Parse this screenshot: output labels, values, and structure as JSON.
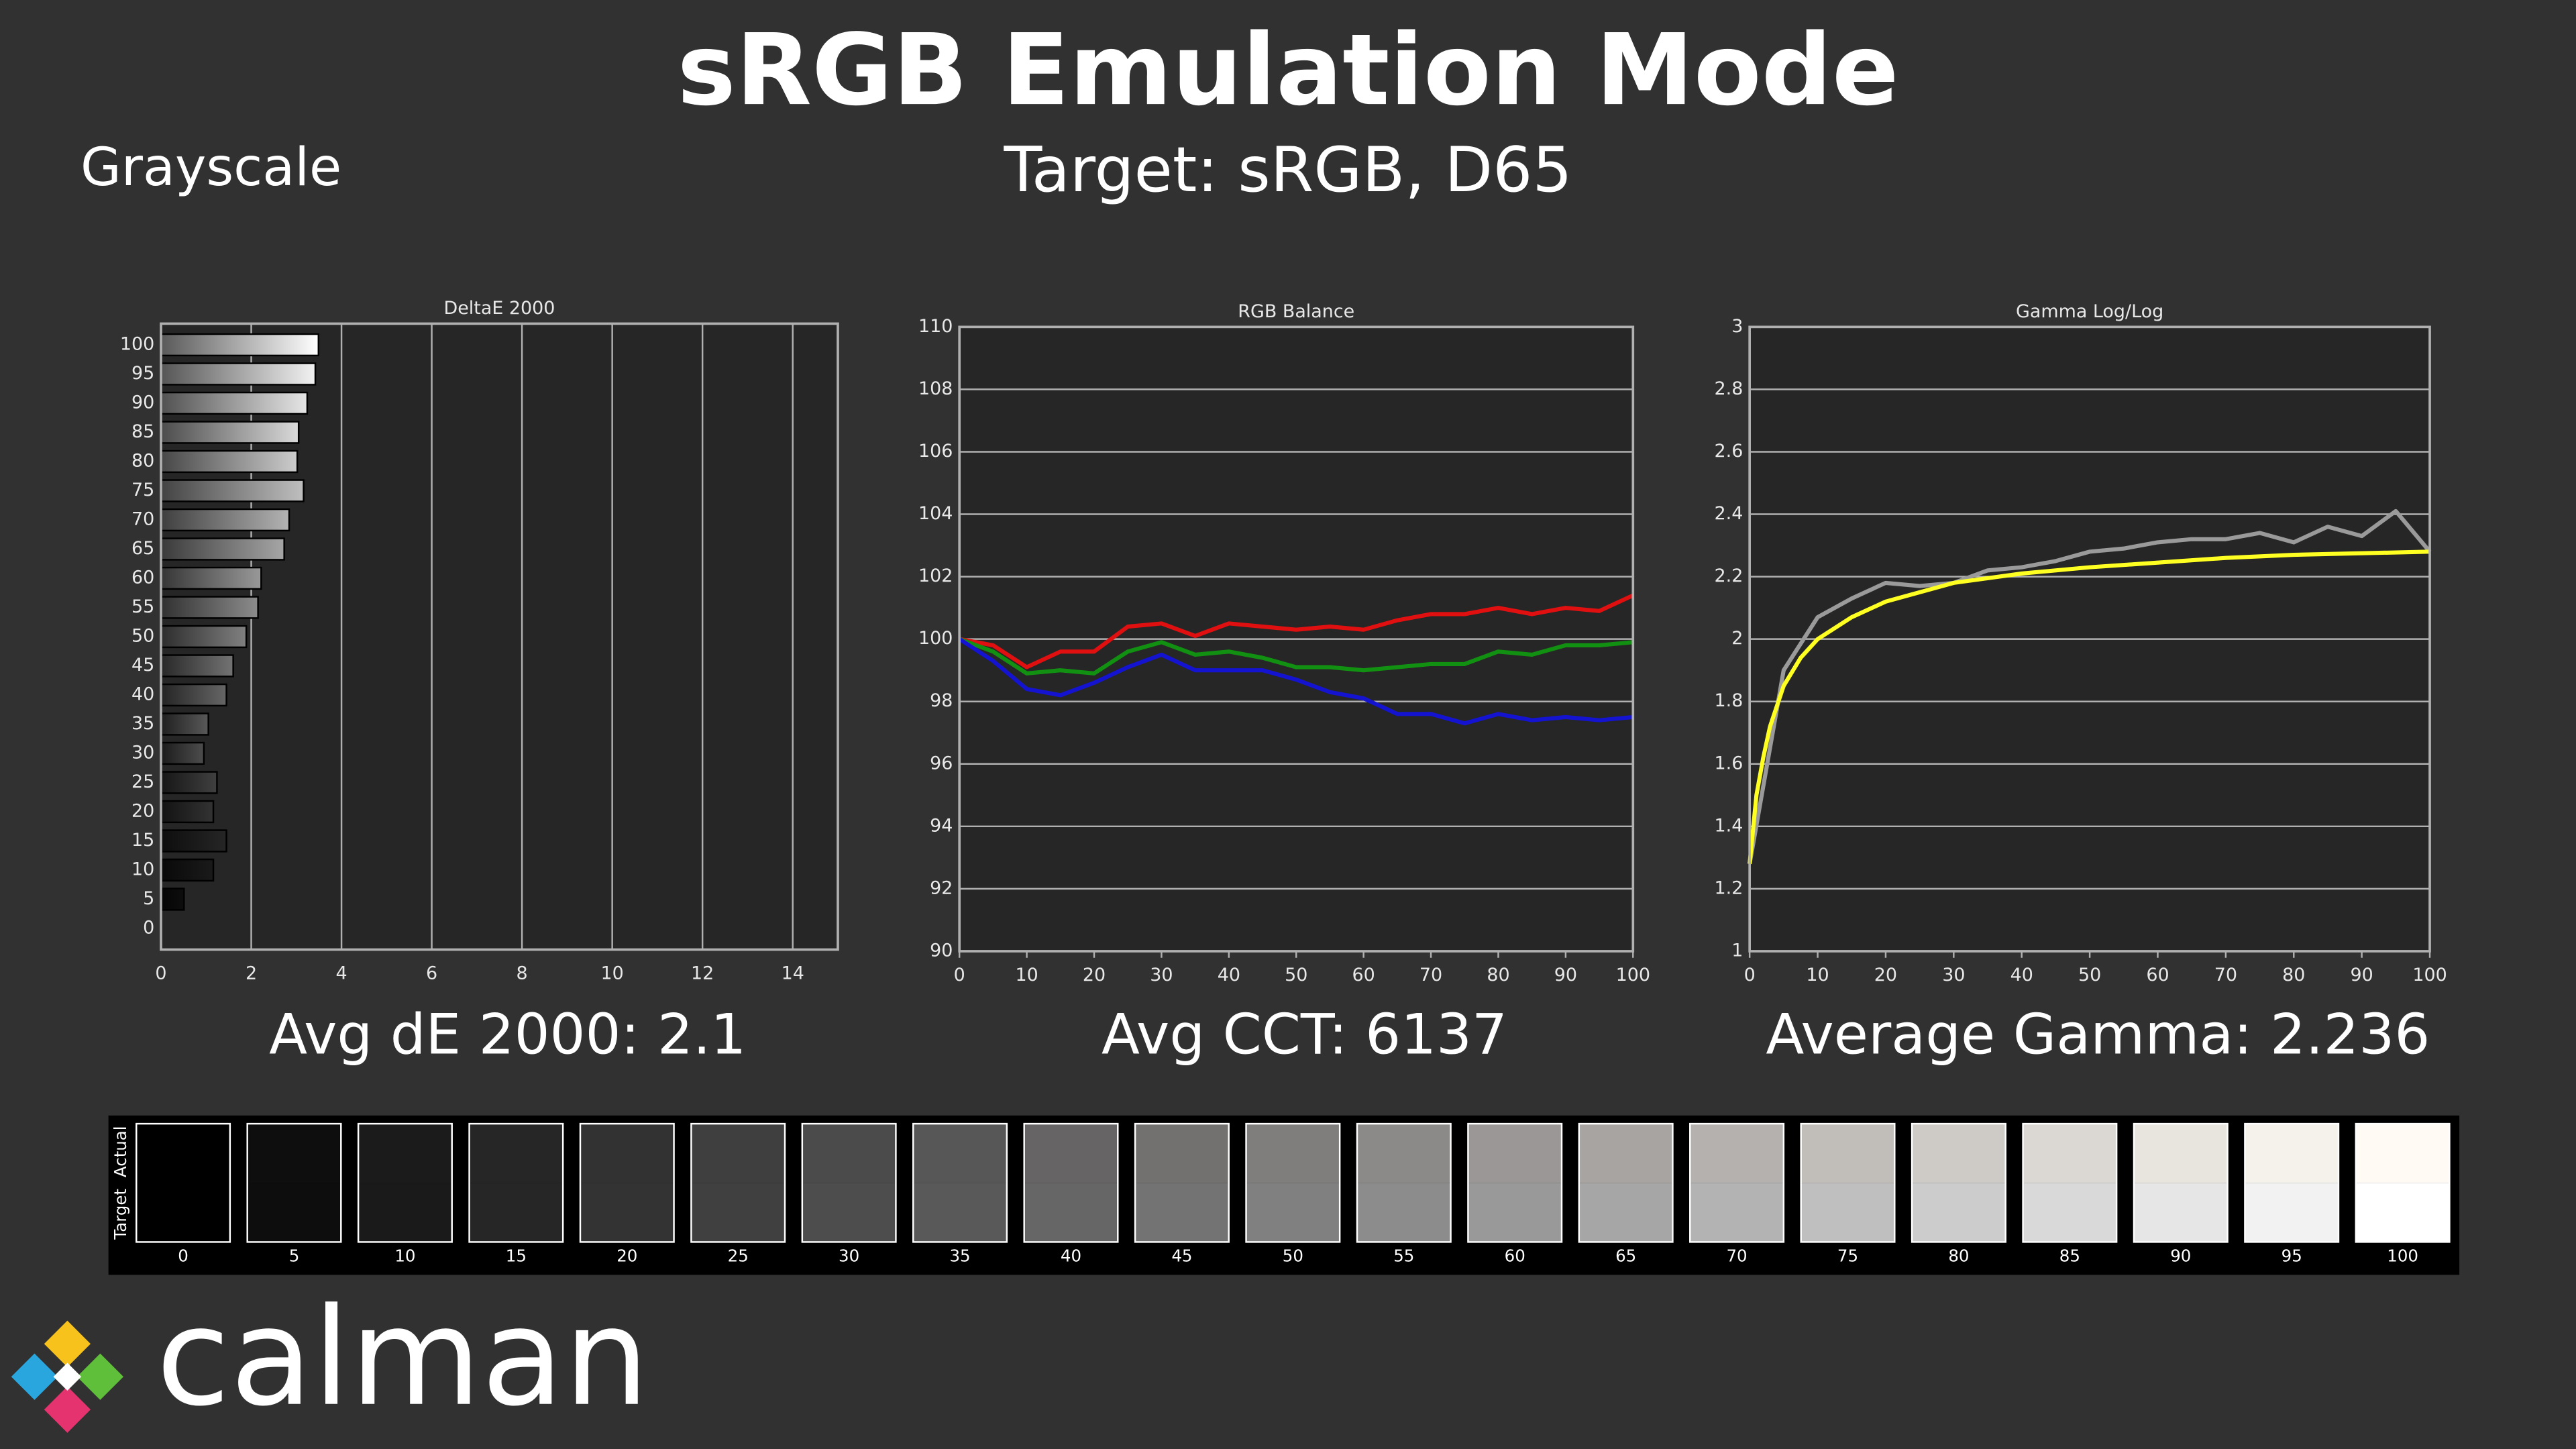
{
  "header": {
    "title": "sRGB Emulation Mode",
    "subtitle": "Target: sRGB, D65",
    "section": "Grayscale"
  },
  "chart_data": [
    {
      "type": "bar",
      "orientation": "horizontal",
      "title": "DeltaE 2000",
      "categories": [
        "0",
        "5",
        "10",
        "15",
        "20",
        "25",
        "30",
        "35",
        "40",
        "45",
        "50",
        "55",
        "60",
        "65",
        "70",
        "75",
        "80",
        "85",
        "90",
        "95",
        "100"
      ],
      "values": [
        0,
        0.51,
        1.16,
        1.45,
        1.16,
        1.24,
        0.95,
        1.05,
        1.45,
        1.6,
        1.89,
        2.15,
        2.22,
        2.73,
        2.84,
        3.16,
        3.02,
        3.05,
        3.24,
        3.42,
        3.49
      ],
      "xlim": [
        0,
        15
      ],
      "xticks": [
        0,
        2,
        4,
        6,
        8,
        10,
        12,
        14
      ],
      "grid": true,
      "annotation": "Avg dE 2000: 2.1"
    },
    {
      "type": "line",
      "title": "RGB Balance",
      "x": [
        0,
        5,
        10,
        15,
        20,
        25,
        30,
        35,
        40,
        45,
        50,
        55,
        60,
        65,
        70,
        75,
        80,
        85,
        90,
        95,
        100
      ],
      "series": [
        {
          "color": "#e01010",
          "values": [
            100,
            99.8,
            99.1,
            99.6,
            99.6,
            100.4,
            100.5,
            100.1,
            100.5,
            100.4,
            100.3,
            100.4,
            100.3,
            100.6,
            100.8,
            100.8,
            101.0,
            100.8,
            101.0,
            100.9,
            101.4
          ]
        },
        {
          "color": "#129012",
          "values": [
            100,
            99.6,
            98.9,
            99.0,
            98.9,
            99.6,
            99.9,
            99.5,
            99.6,
            99.4,
            99.1,
            99.1,
            99.0,
            99.1,
            99.2,
            99.2,
            99.6,
            99.5,
            99.8,
            99.8,
            99.9
          ]
        },
        {
          "color": "#1414d0",
          "values": [
            100,
            99.3,
            98.4,
            98.2,
            98.6,
            99.1,
            99.5,
            99.0,
            99.0,
            99.0,
            98.7,
            98.3,
            98.1,
            97.6,
            97.6,
            97.3,
            97.6,
            97.4,
            97.5,
            97.4,
            97.5
          ]
        }
      ],
      "xlim": [
        0,
        100
      ],
      "xticks": [
        0,
        10,
        20,
        30,
        40,
        50,
        60,
        70,
        80,
        90,
        100
      ],
      "ylim": [
        90,
        110
      ],
      "yticks": [
        90,
        92,
        94,
        96,
        98,
        100,
        102,
        104,
        106,
        108,
        110
      ],
      "grid": true,
      "annotation": "Avg CCT: 6137"
    },
    {
      "type": "line",
      "title": "Gamma Log/Log",
      "series": [
        {
          "color": "#9a9a9a",
          "x": [
            0,
            5,
            10,
            15,
            20,
            25,
            30,
            35,
            40,
            45,
            50,
            55,
            60,
            65,
            70,
            75,
            80,
            85,
            90,
            95,
            100
          ],
          "values": [
            1.28,
            1.9,
            2.07,
            2.13,
            2.18,
            2.17,
            2.18,
            2.22,
            2.23,
            2.25,
            2.28,
            2.29,
            2.31,
            2.32,
            2.32,
            2.34,
            2.31,
            2.36,
            2.33,
            2.41,
            2.28
          ]
        },
        {
          "color": "#ffff22",
          "x": [
            0,
            1,
            2,
            3,
            5,
            7.5,
            10,
            15,
            20,
            30,
            40,
            50,
            60,
            70,
            80,
            90,
            100
          ],
          "values": [
            1.28,
            1.5,
            1.62,
            1.72,
            1.85,
            1.94,
            2.0,
            2.07,
            2.12,
            2.18,
            2.21,
            2.23,
            2.245,
            2.26,
            2.27,
            2.275,
            2.28
          ]
        }
      ],
      "xlim": [
        0,
        100
      ],
      "xticks": [
        0,
        10,
        20,
        30,
        40,
        50,
        60,
        70,
        80,
        90,
        100
      ],
      "ylim": [
        1,
        3
      ],
      "yticks": [
        1,
        1.2,
        1.4,
        1.6,
        1.8,
        2,
        2.2,
        2.4,
        2.6,
        2.8,
        3
      ],
      "grid": true,
      "annotation": "Average Gamma: 2.236"
    }
  ],
  "swatches": {
    "actual_label": "Actual",
    "target_label": "Target",
    "labels": [
      "0",
      "5",
      "10",
      "15",
      "20",
      "25",
      "30",
      "35",
      "40",
      "45",
      "50",
      "55",
      "60",
      "65",
      "70",
      "75",
      "80",
      "85",
      "90",
      "95",
      "100"
    ],
    "actual_colors": [
      "#000000",
      "#0e0e0e",
      "#1b1b1b",
      "#262626",
      "#323232",
      "#3f3f3f",
      "#4c4b4b",
      "#585757",
      "#666464",
      "#737170",
      "#807e7d",
      "#8c8a89",
      "#9a9796",
      "#a7a4a2",
      "#b4b1ae",
      "#c1beba",
      "#cecbc6",
      "#dbd8d3",
      "#e8e5df",
      "#f5f2ec",
      "#fffaf3"
    ],
    "target_colors": [
      "#000000",
      "#0d0d0d",
      "#1a1a1a",
      "#262626",
      "#333333",
      "#404040",
      "#4d4d4d",
      "#595959",
      "#666666",
      "#737373",
      "#808080",
      "#8c8c8c",
      "#999999",
      "#a6a6a6",
      "#b3b3b3",
      "#bfbfbf",
      "#cccccc",
      "#d9d9d9",
      "#e6e6e6",
      "#f2f2f2",
      "#ffffff"
    ]
  },
  "logo": {
    "text": "calman"
  }
}
